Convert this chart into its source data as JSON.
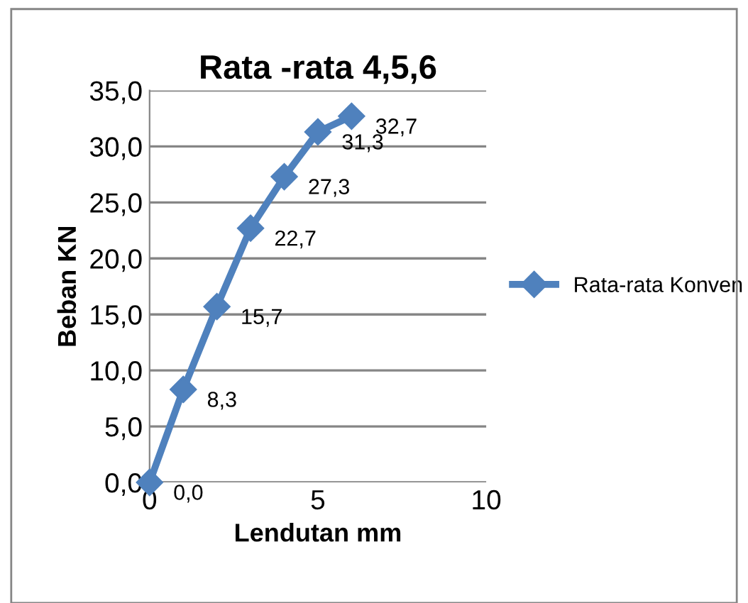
{
  "chart_data": {
    "type": "line",
    "title": "Rata -rata 4,5,6",
    "xlabel": "Lendutan mm",
    "ylabel": "Beban KN",
    "x": [
      0,
      1,
      2,
      3,
      4,
      5,
      6
    ],
    "series": [
      {
        "name": "Rata-rata Konven",
        "color": "#4f81bd",
        "values": [
          0.0,
          8.3,
          15.7,
          22.7,
          27.3,
          31.3,
          32.7
        ],
        "value_labels": [
          "0,0",
          "8,3",
          "15,7",
          "22,7",
          "27,3",
          "31,3",
          "32,7"
        ]
      }
    ],
    "xlim": [
      0,
      10
    ],
    "xticks": [
      0,
      5,
      10
    ],
    "ylim": [
      0,
      35
    ],
    "yticks": [
      {
        "value": 0,
        "label": "0,0"
      },
      {
        "value": 5,
        "label": "5,0"
      },
      {
        "value": 10,
        "label": "10,0"
      },
      {
        "value": 15,
        "label": "15,0"
      },
      {
        "value": 20,
        "label": "20,0"
      },
      {
        "value": 25,
        "label": "25,0"
      },
      {
        "value": 30,
        "label": "30,0"
      },
      {
        "value": 35,
        "label": "35,0"
      }
    ],
    "grid": "y",
    "legend": "right",
    "marker": "diamond",
    "line_style": "solid"
  }
}
